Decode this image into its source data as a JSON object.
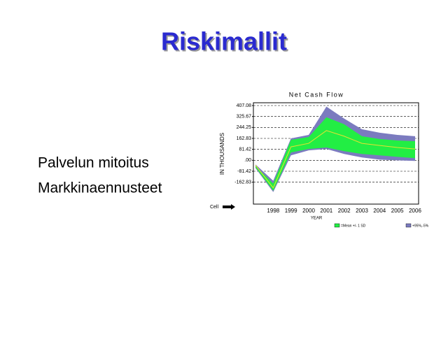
{
  "slide": {
    "title": "Riskimallit",
    "bullets": [
      "Palvelun mitoitus",
      "Markkinaennusteet"
    ],
    "cell_label": "Cell"
  },
  "chart_data": {
    "type": "band",
    "title": "Net Cash Flow",
    "x_label": "YEAR",
    "y_label": "IN THOUSANDS",
    "categories": [
      null,
      "1998",
      "1999",
      "2000",
      "2001",
      "2002",
      "2003",
      "2004",
      "2005",
      "2006"
    ],
    "ylim": [
      -325.67,
      407.08
    ],
    "yticks": [
      407.08,
      325.67,
      244.25,
      162.83,
      81.42,
      {
        "value": 0,
        "label": ".00"
      },
      -81.42,
      -162.83
    ],
    "grid": true,
    "series": [
      {
        "name": "+95%,-5%",
        "color": "#7b7bbf",
        "upper": [
          -31,
          -152,
          163,
          189,
          399,
          310,
          231,
          205,
          189,
          179
        ],
        "lower": [
          -58,
          -236,
          37,
          74,
          84,
          47,
          21,
          5,
          0,
          -5
        ]
      },
      {
        "name": "=Mean +/- 1 SD",
        "color": "#22ee44",
        "upper": [
          -42,
          -173,
          152,
          173,
          320,
          268,
          179,
          158,
          147,
          142
        ],
        "lower": [
          -52,
          -226,
          58,
          84,
          95,
          68,
          47,
          37,
          26,
          16
        ]
      }
    ],
    "mean": {
      "color": "#e8e030",
      "values": [
        -36,
        -205,
        100,
        126,
        221,
        179,
        126,
        110,
        95,
        84
      ]
    }
  }
}
